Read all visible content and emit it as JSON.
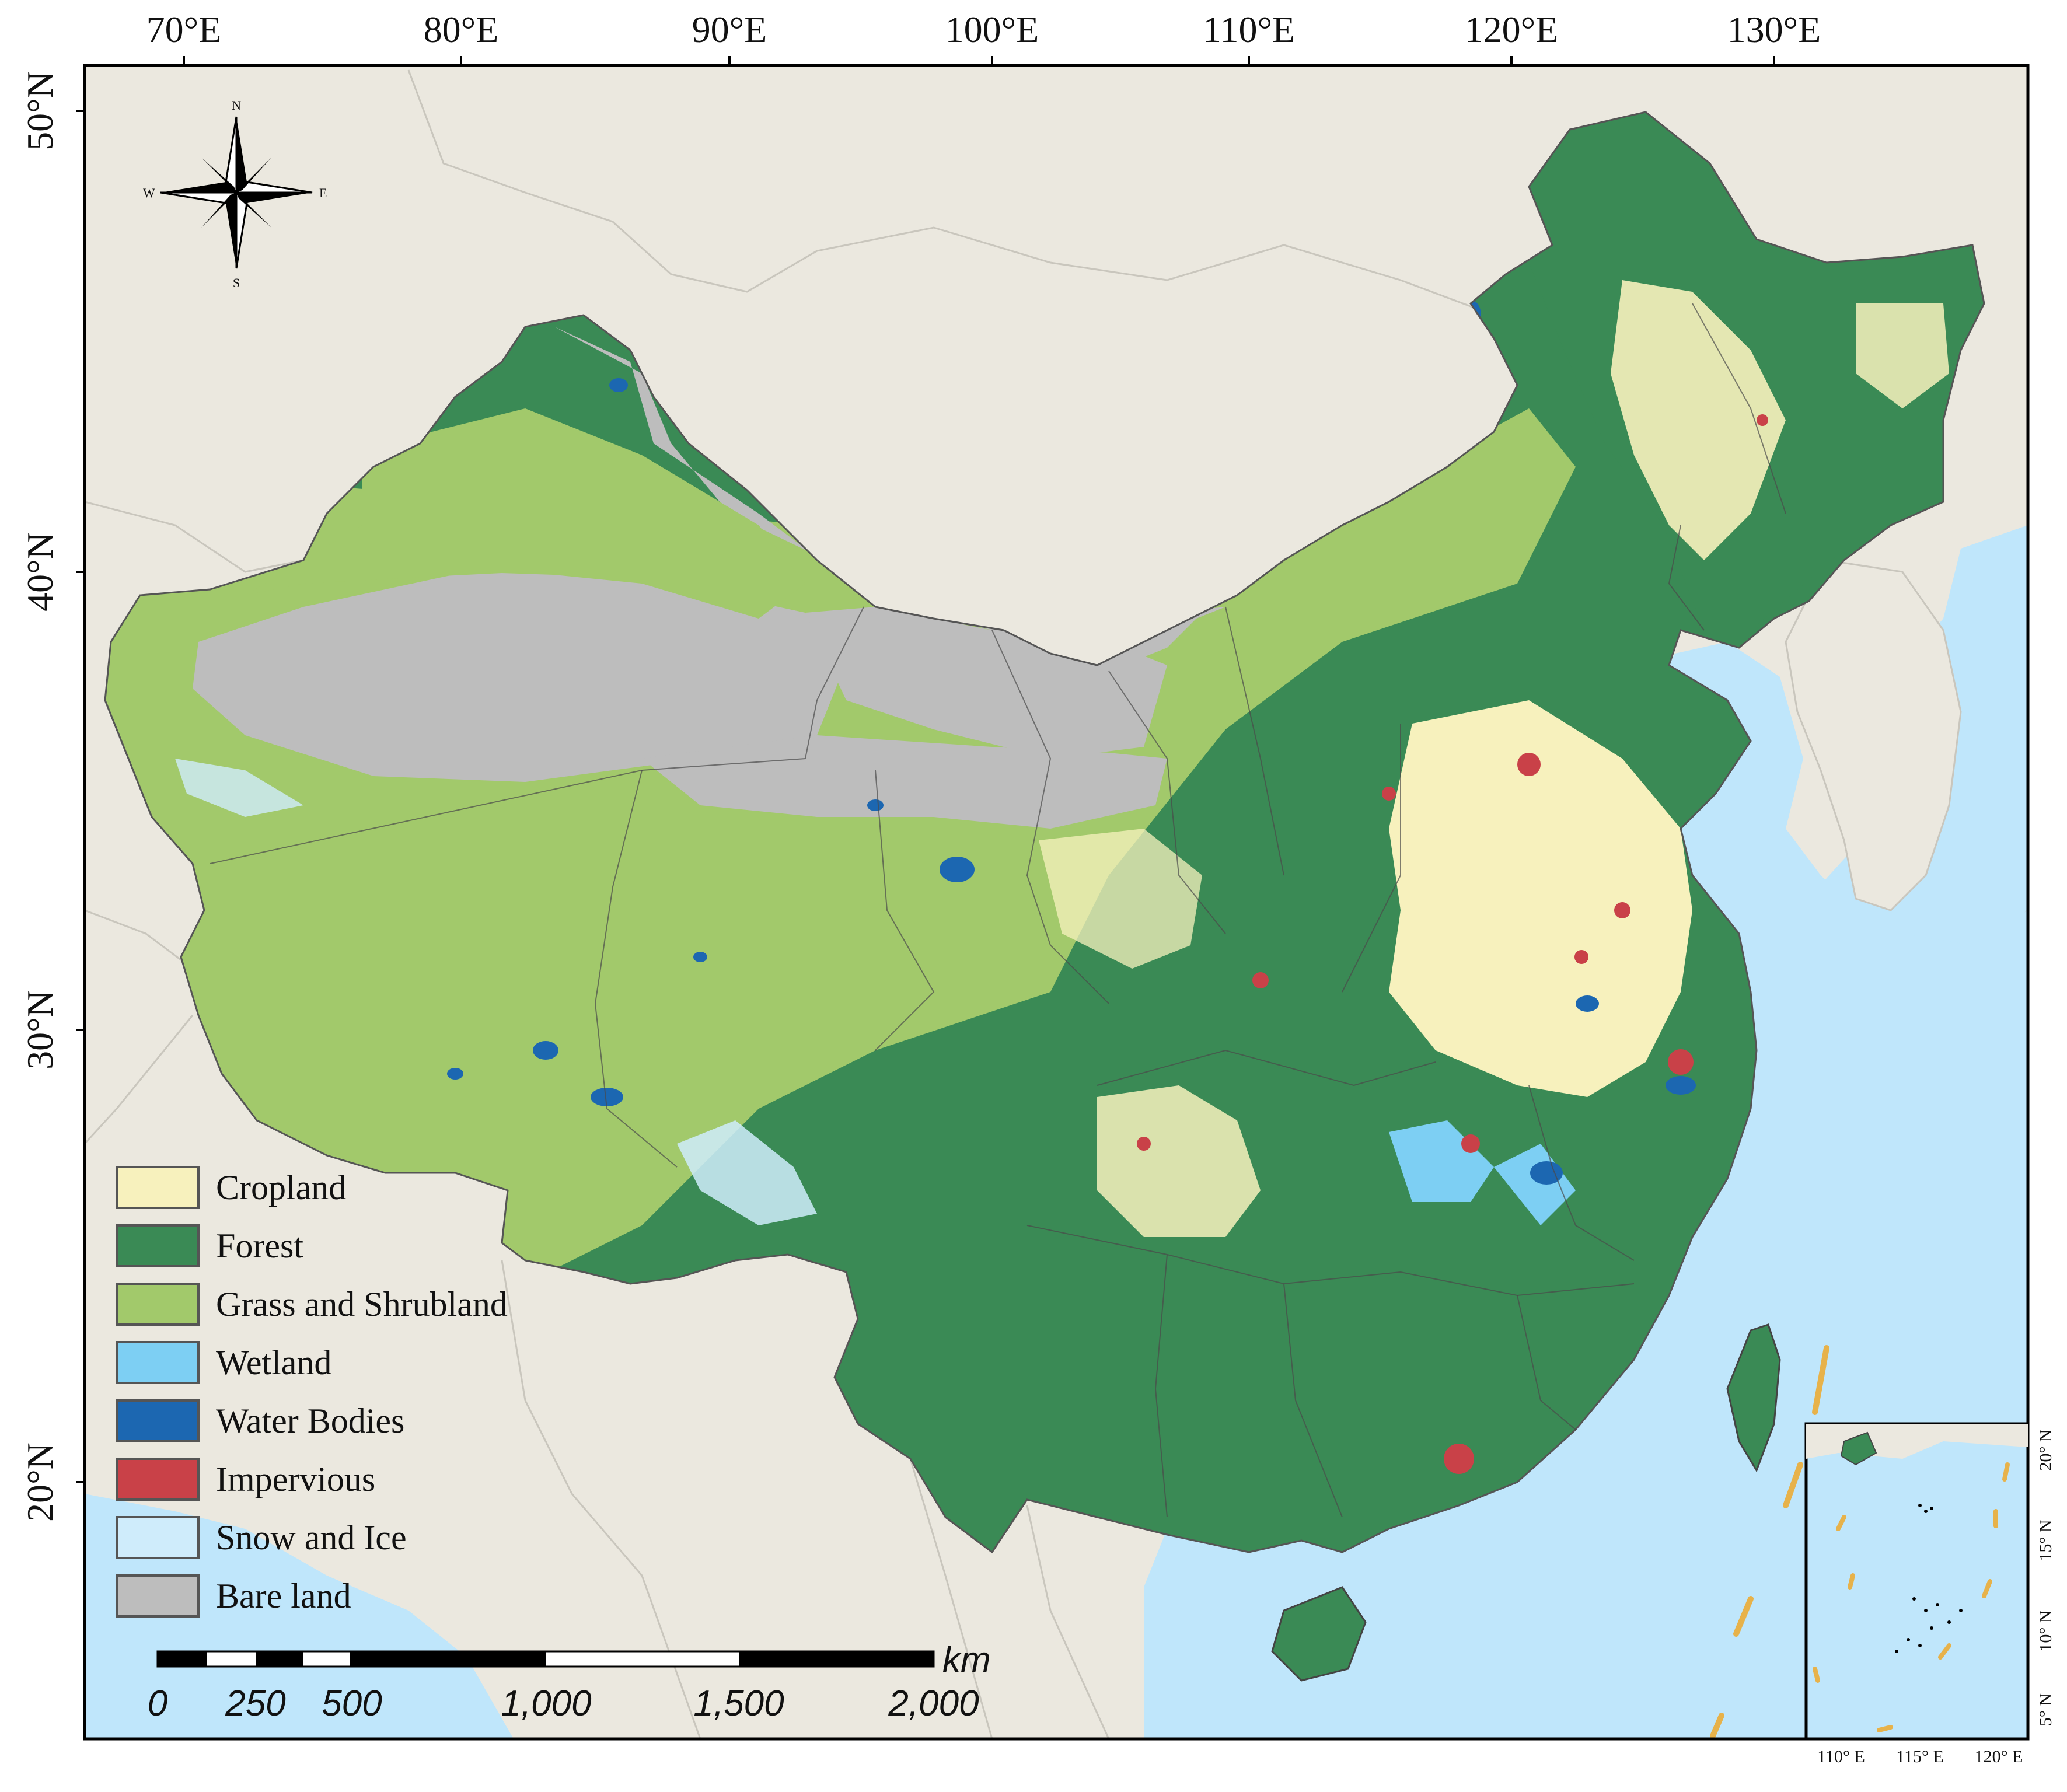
{
  "map": {
    "top_longitude_labels": [
      "70°E",
      "80°E",
      "90°E",
      "100°E",
      "110°E",
      "120°E",
      "130°E"
    ],
    "left_latitude_labels": [
      "50°N",
      "40°N",
      "30°N",
      "20°N"
    ],
    "compass": {
      "n": "N",
      "s": "S",
      "e": "E",
      "w": "W"
    },
    "scale_bar": {
      "unit": "km",
      "labels": [
        "0",
        "250",
        "500",
        "1,000",
        "1,500",
        "2,000"
      ]
    },
    "legend": [
      {
        "label": "Cropland",
        "color": "#f7f1bd"
      },
      {
        "label": "Forest",
        "color": "#3a8a55"
      },
      {
        "label": "Grass and Shrubland",
        "color": "#a2c96b"
      },
      {
        "label": "Wetland",
        "color": "#7dcff3"
      },
      {
        "label": "Water Bodies",
        "color": "#1c67b1"
      },
      {
        "label": "Impervious",
        "color": "#c94148"
      },
      {
        "label": "Snow and Ice",
        "color": "#cfecfb"
      },
      {
        "label": "Bare land",
        "color": "#bdbdbd"
      }
    ],
    "inset": {
      "bottom_labels": [
        "110° E",
        "115° E",
        "120° E"
      ],
      "right_labels": [
        "20° N",
        "15° N",
        "10° N",
        "5° N"
      ]
    },
    "colors": {
      "ocean": "#bfe6fb",
      "neighbor_land": "#ebe8df",
      "frame": "#000000"
    }
  }
}
